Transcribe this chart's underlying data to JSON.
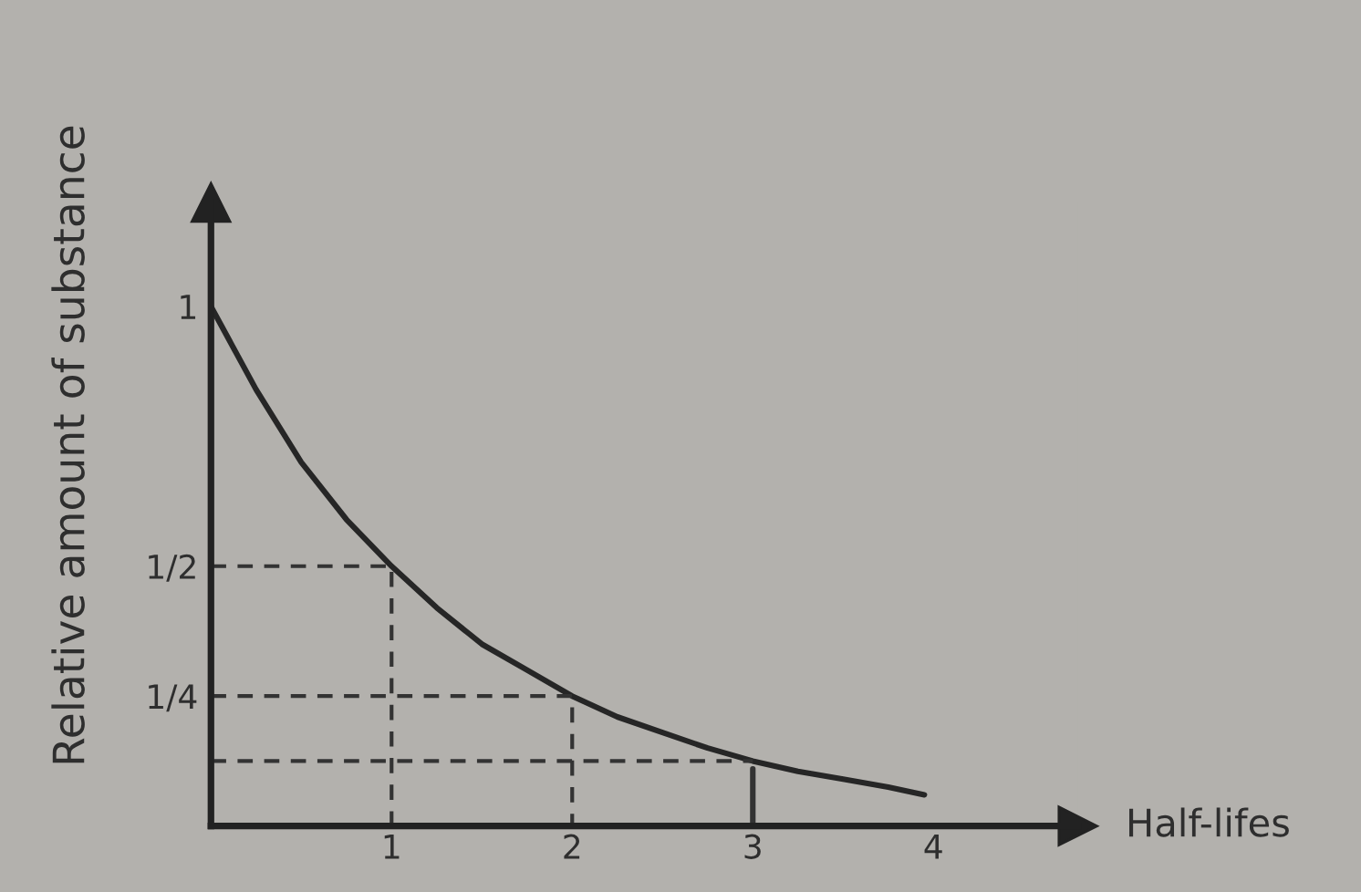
{
  "chart_data": {
    "type": "line",
    "xlabel": "Half-lifes",
    "ylabel": "Relative amount of substance",
    "xlim": [
      0,
      4.8
    ],
    "ylim": [
      0,
      1.2
    ],
    "xticks": [
      1,
      2,
      3,
      4
    ],
    "yticks": [
      1,
      {
        "value": 0.5,
        "label": "1/2"
      },
      {
        "value": 0.25,
        "label": "1/4"
      }
    ],
    "series": [
      {
        "color": "#262626",
        "x": [
          0,
          0.25,
          0.5,
          0.75,
          1,
          1.25,
          1.5,
          1.75,
          2,
          2.25,
          2.5,
          2.75,
          3,
          3.25,
          3.5,
          3.75,
          3.95
        ],
        "values": [
          1,
          0.84,
          0.7,
          0.59,
          0.5,
          0.42,
          0.35,
          0.3,
          0.25,
          0.21,
          0.18,
          0.15,
          0.125,
          0.105,
          0.09,
          0.075,
          0.06
        ]
      },
      {
        "color": "#333333",
        "line_style": "dashed",
        "x": [
          0,
          1,
          1
        ],
        "values": [
          0.5,
          0.5,
          0
        ]
      },
      {
        "color": "#333333",
        "line_style": "dashed",
        "x": [
          0,
          2,
          2
        ],
        "values": [
          0.25,
          0.25,
          0
        ]
      },
      {
        "color": "#333333",
        "line_style": "dashed",
        "x": [
          0,
          3
        ],
        "values": [
          0.125,
          0.125
        ]
      },
      {
        "color": "#333333",
        "x": [
          3,
          3
        ],
        "values": [
          0,
          0.11
        ]
      }
    ]
  }
}
